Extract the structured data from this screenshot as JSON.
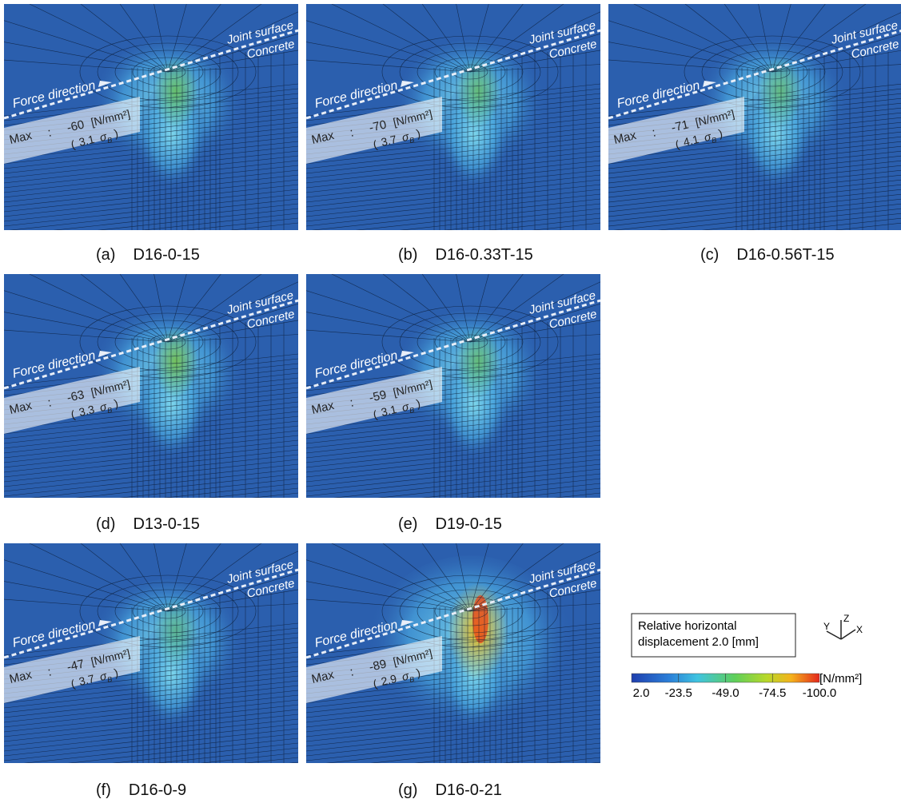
{
  "panels": [
    {
      "label": "(a)",
      "name": "D16-0-15",
      "max": "-60",
      "sigma": "3.1"
    },
    {
      "label": "(b)",
      "name": "D16-0.33T-15",
      "max": "-70",
      "sigma": "3.7"
    },
    {
      "label": "(c)",
      "name": "D16-0.56T-15",
      "max": "-71",
      "sigma": "4.1"
    },
    {
      "label": "(d)",
      "name": "D13-0-15",
      "max": "-63",
      "sigma": "3.3"
    },
    {
      "label": "(e)",
      "name": "D19-0-15",
      "max": "-59",
      "sigma": "3.1"
    },
    {
      "label": "(f)",
      "name": "D16-0-9",
      "max": "-47",
      "sigma": "3.7"
    },
    {
      "label": "(g)",
      "name": "D16-0-21",
      "max": "-89",
      "sigma": "2.9"
    }
  ],
  "annotations": {
    "joint_surface": "Joint surface",
    "concrete": "Concrete",
    "force_direction": "Force direction",
    "max_label": "Max",
    "colon": ":",
    "unit": "[N/mm²]",
    "open_paren": "(",
    "close_paren": ")",
    "sigma_symbol": "σ",
    "sigma_sub": "B"
  },
  "legend": {
    "box_line1": "Relative horizontal",
    "box_line2": "displacement 2.0 [mm]",
    "axis_y": "Y",
    "axis_z": "Z",
    "axis_x": "X",
    "unit": "[N/mm²]",
    "ticks": [
      "2.0",
      "-23.5",
      "-49.0",
      "-74.5",
      "-100.0"
    ]
  }
}
